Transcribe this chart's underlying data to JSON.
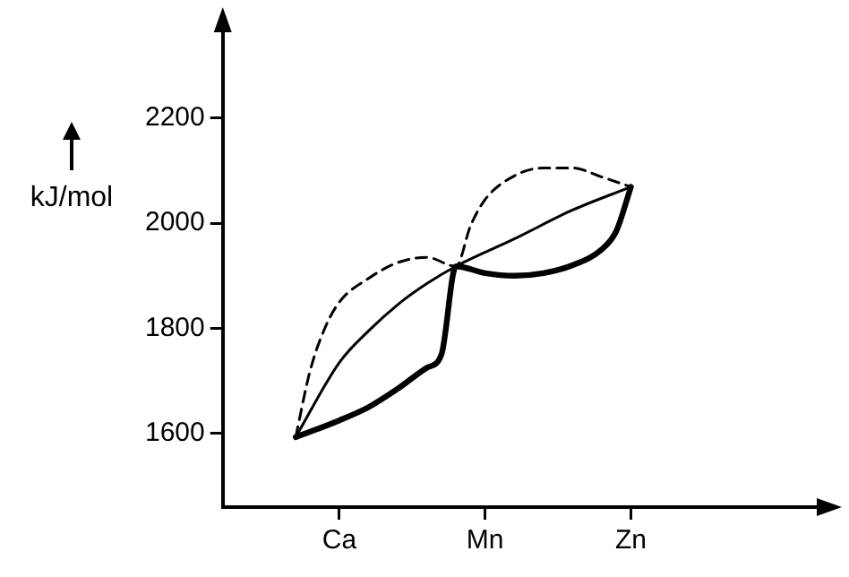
{
  "chart_data": {
    "type": "line",
    "ylabel": "kJ/mol",
    "ylim": [
      1460,
      2370
    ],
    "categories": [
      null,
      null,
      null,
      null,
      null,
      null,
      null,
      null,
      "Ca",
      null,
      null,
      null,
      null,
      null,
      null,
      null,
      null,
      null,
      "Mn",
      null,
      null,
      null,
      null,
      null,
      null,
      null,
      null,
      null,
      "Zn",
      null,
      null,
      null,
      null,
      null,
      null,
      null,
      null,
      null,
      null,
      null,
      null,
      null
    ],
    "yticks": [
      1600,
      1800,
      2000,
      2200
    ],
    "grid": false,
    "legend": false,
    "marker": "none",
    "series": [
      {
        "color": "#000000",
        "line_style": "dashed",
        "values": [
          null,
          null,
          null,
          null,
          null,
          1593,
          1720,
          1800,
          1850,
          null,
          1895,
          null,
          1925,
          null,
          1935,
          null,
          1918,
          1995,
          2045,
          null,
          2090,
          null,
          2105,
          null,
          2105,
          null,
          2088,
          null,
          2069,
          null,
          null,
          null,
          null,
          null,
          null,
          null,
          null,
          null,
          null,
          null,
          null,
          null
        ]
      },
      {
        "color": "#000000",
        "line_style": "solid",
        "values": [
          null,
          null,
          null,
          null,
          null,
          1593,
          null,
          null,
          1735,
          null,
          1795,
          null,
          1845,
          null,
          1885,
          null,
          1918,
          null,
          null,
          null,
          1970,
          null,
          null,
          null,
          2025,
          null,
          null,
          null,
          2069,
          null,
          null,
          null,
          null,
          null,
          null,
          null,
          null,
          null,
          null,
          null,
          null,
          null
        ]
      },
      {
        "color": "#000000",
        "line_style": "solid",
        "values": [
          null,
          null,
          null,
          null,
          null,
          1593,
          null,
          null,
          1625,
          null,
          1650,
          null,
          1685,
          null,
          1725,
          1750,
          1918,
          null,
          1905,
          null,
          1900,
          null,
          1905,
          null,
          1920,
          null,
          1950,
          1985,
          2069,
          null,
          null,
          null,
          null,
          null,
          null,
          null,
          null,
          null,
          null,
          null,
          null,
          null
        ]
      }
    ]
  }
}
